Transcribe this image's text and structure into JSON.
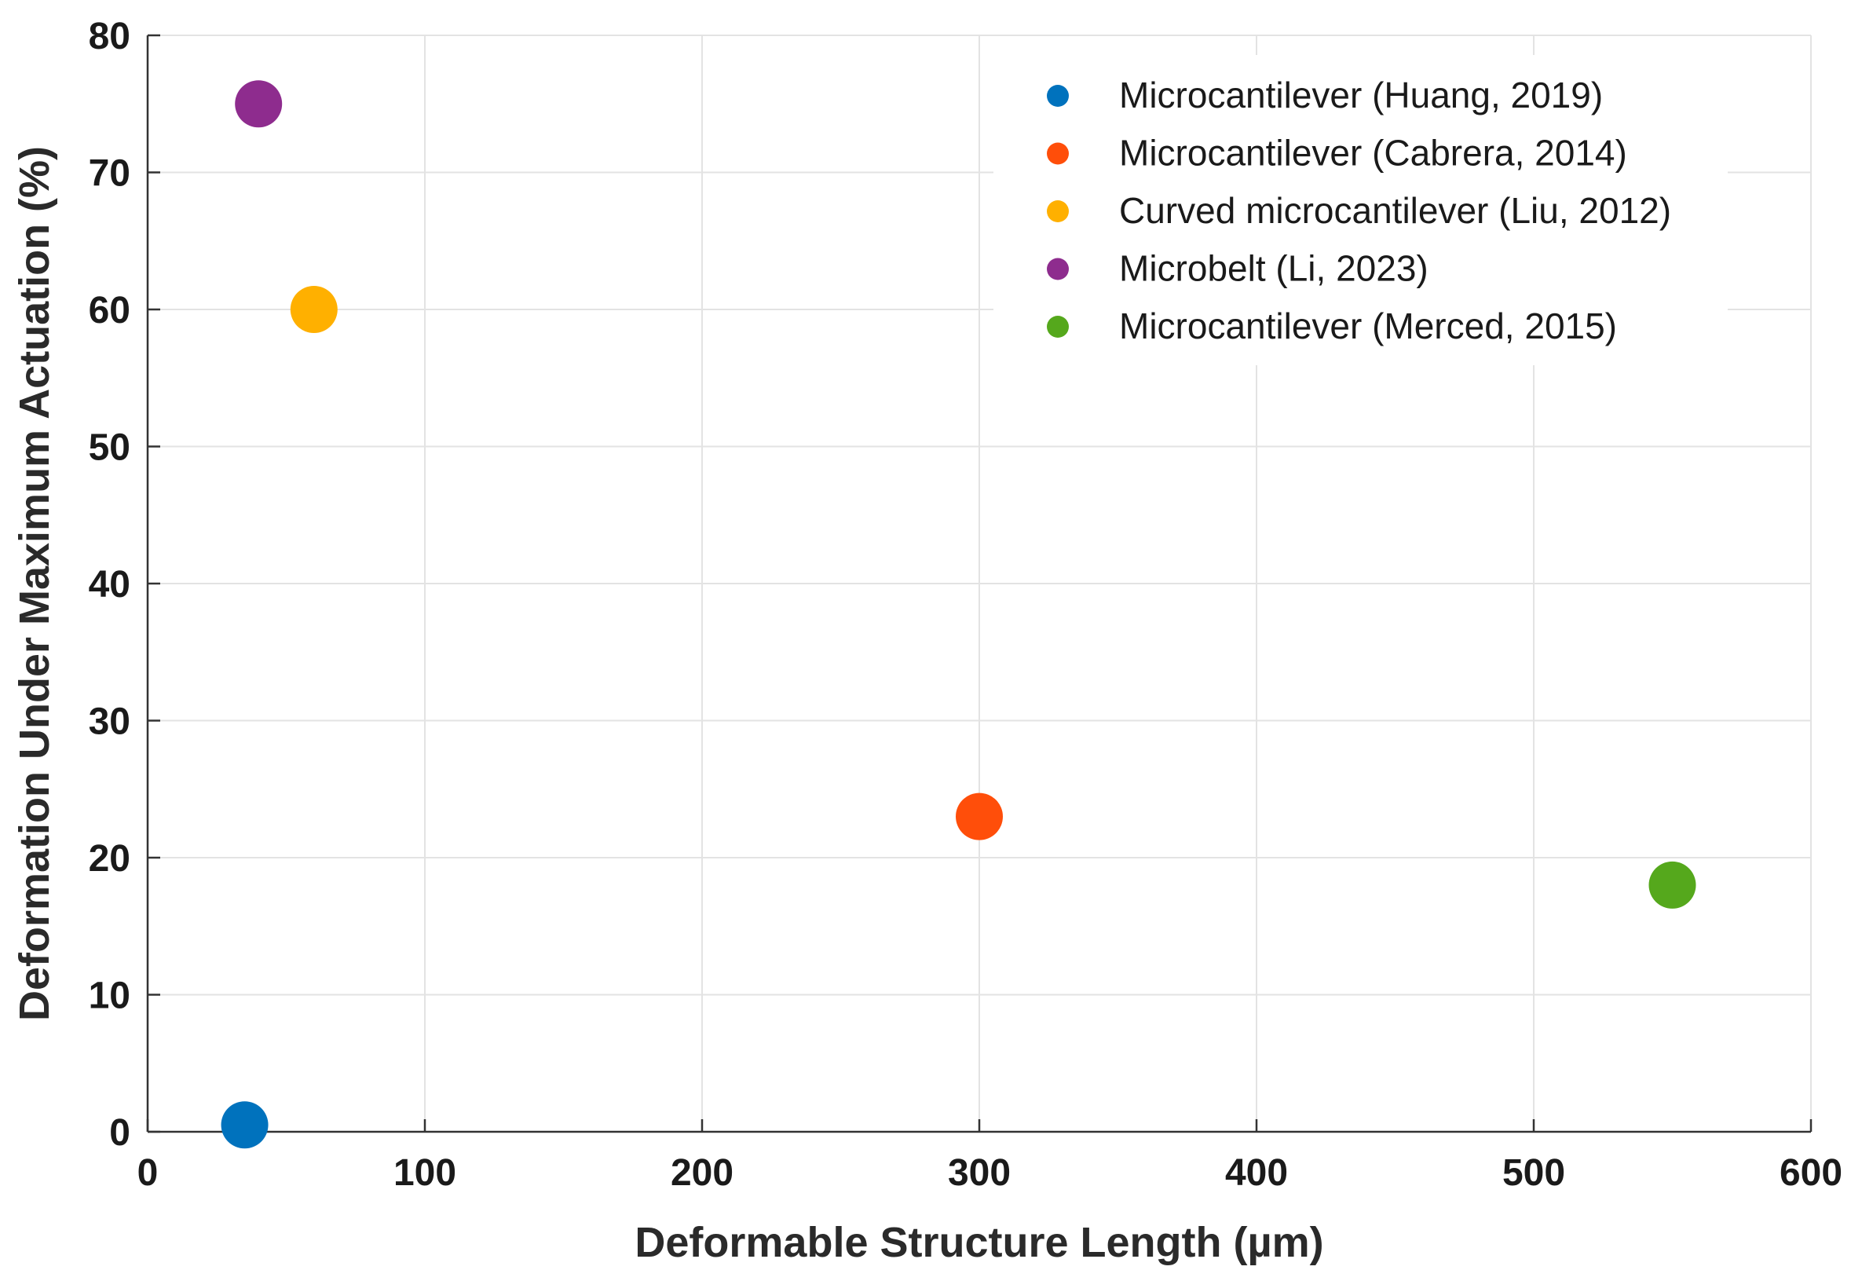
{
  "chart_data": {
    "type": "scatter",
    "title": "",
    "xlabel": "Deformable Structure Length (µm)",
    "ylabel": "Deformation Under Maximum Actuation (%)",
    "xlim": [
      0,
      600
    ],
    "ylim": [
      0,
      80
    ],
    "xticks": [
      "0",
      "100",
      "200",
      "300",
      "400",
      "500",
      "600"
    ],
    "yticks": [
      "0",
      "10",
      "20",
      "30",
      "40",
      "50",
      "60",
      "70",
      "80"
    ],
    "grid": true,
    "legend_position": "top-right",
    "series": [
      {
        "name": "Microcantilever (Huang, 2019)",
        "color": "#0072BD",
        "points": [
          {
            "x": 35,
            "y": 0.5
          }
        ]
      },
      {
        "name": "Microcantilever (Cabrera, 2014)",
        "color": "#FF4E0A",
        "points": [
          {
            "x": 300,
            "y": 23
          }
        ]
      },
      {
        "name": "Curved microcantilever (Liu, 2012)",
        "color": "#FFB000",
        "points": [
          {
            "x": 60,
            "y": 60
          }
        ]
      },
      {
        "name": "Microbelt (Li, 2023)",
        "color": "#8E2C8E",
        "points": [
          {
            "x": 40,
            "y": 75
          }
        ]
      },
      {
        "name": "Microcantilever (Merced, 2015)",
        "color": "#55A81C",
        "points": [
          {
            "x": 550,
            "y": 18
          }
        ]
      }
    ]
  }
}
